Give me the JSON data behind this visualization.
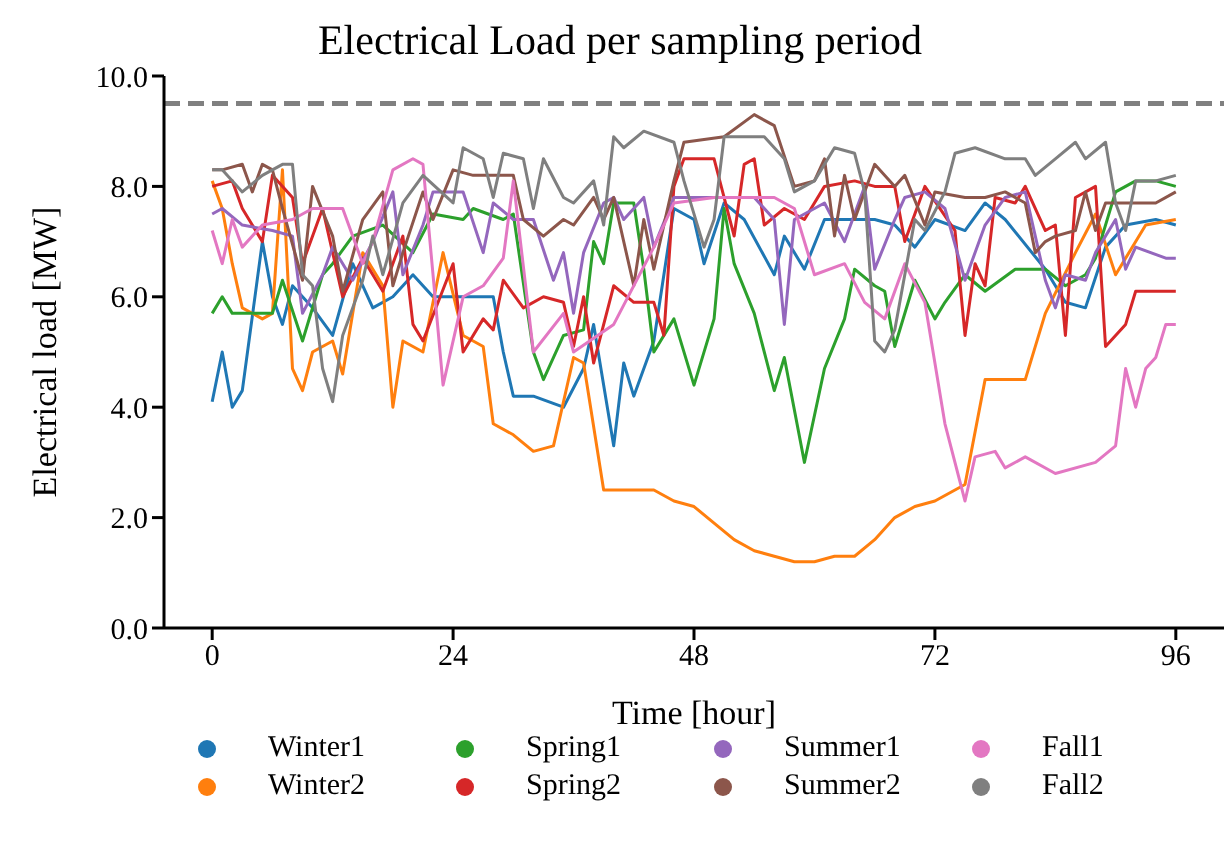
{
  "chart_data": {
    "type": "line",
    "title": "Electrical Load per sampling period",
    "xlabel": "Time [hour]",
    "ylabel": "Electrical load [MW]",
    "xlim": [
      -4.8,
      100.8
    ],
    "xticks": [
      0,
      24,
      48,
      72,
      96
    ],
    "ylim": [
      0,
      10
    ],
    "yticks": [
      {
        "value": 0,
        "label": "0.0"
      },
      {
        "value": 2,
        "label": "2.0"
      },
      {
        "value": 4,
        "label": "4.0"
      },
      {
        "value": 6,
        "label": "6.0"
      },
      {
        "value": 8,
        "label": "8.0"
      },
      {
        "value": 10,
        "label": "10.0"
      }
    ],
    "legend": "bottom",
    "marker": "none",
    "line_style": "solid",
    "ref_lines": [
      {
        "axis": "y",
        "value": 9.5,
        "color": "#808080",
        "line_style": "dashed"
      }
    ],
    "series": [
      {
        "name": "Winter1",
        "color": "#1f77b4",
        "x": [
          0,
          1,
          2,
          3,
          5,
          6,
          7,
          8,
          10,
          12,
          14,
          16,
          18,
          20,
          22,
          28,
          29,
          30,
          32,
          35,
          37,
          38,
          40,
          41,
          42,
          44,
          46,
          48,
          49,
          51,
          53,
          56,
          57,
          59,
          61,
          64,
          66,
          68,
          70,
          72,
          75,
          77,
          79,
          83,
          85,
          87,
          89,
          91,
          94,
          96
        ],
        "values": [
          4.1,
          5.0,
          4.0,
          4.3,
          7.0,
          6.0,
          5.5,
          6.2,
          5.8,
          5.3,
          6.6,
          5.8,
          6.0,
          6.4,
          6.0,
          6.0,
          5.0,
          4.2,
          4.2,
          4.0,
          4.7,
          5.5,
          3.3,
          4.8,
          4.2,
          5.2,
          7.6,
          7.4,
          6.6,
          7.7,
          7.4,
          6.4,
          7.1,
          6.5,
          7.4,
          7.4,
          7.4,
          7.3,
          6.9,
          7.4,
          7.2,
          7.7,
          7.4,
          6.5,
          5.9,
          5.8,
          6.9,
          7.3,
          7.4,
          7.3
        ]
      },
      {
        "name": "Winter2",
        "color": "#ff7f0e",
        "x": [
          0,
          1,
          2,
          3,
          5,
          6,
          7,
          8,
          9,
          10,
          12,
          13,
          15,
          17,
          18,
          19,
          21,
          23,
          25,
          27,
          28,
          30,
          32,
          34,
          36,
          37,
          39,
          41,
          44,
          46,
          48,
          50,
          52,
          54,
          56,
          58,
          60,
          62,
          64,
          66,
          68,
          70,
          72,
          75,
          77,
          81,
          83,
          86,
          88,
          90,
          93,
          96
        ],
        "values": [
          8.1,
          7.6,
          6.6,
          5.8,
          5.6,
          5.7,
          8.3,
          4.7,
          4.3,
          5.0,
          5.2,
          4.6,
          6.8,
          6.2,
          4.0,
          5.2,
          5.0,
          6.8,
          5.3,
          5.1,
          3.7,
          3.5,
          3.2,
          3.3,
          4.9,
          4.8,
          2.5,
          2.5,
          2.5,
          2.3,
          2.2,
          1.9,
          1.6,
          1.4,
          1.3,
          1.2,
          1.2,
          1.3,
          1.3,
          1.6,
          2.0,
          2.2,
          2.3,
          2.6,
          4.5,
          4.5,
          5.7,
          6.8,
          7.5,
          6.4,
          7.3,
          7.4
        ]
      },
      {
        "name": "Spring1",
        "color": "#2ca02c",
        "x": [
          0,
          1,
          2,
          6,
          7,
          9,
          11,
          12,
          14,
          17,
          20,
          22,
          25,
          26,
          29,
          30,
          32,
          33,
          35,
          37,
          38,
          39,
          40,
          42,
          43,
          44,
          46,
          48,
          50,
          51,
          52,
          54,
          56,
          57,
          59,
          61,
          63,
          64,
          66,
          67,
          68,
          70,
          72,
          73,
          75,
          77,
          80,
          83,
          85,
          87,
          88,
          90,
          92,
          94,
          96
        ],
        "values": [
          5.7,
          6.0,
          5.7,
          5.7,
          6.3,
          5.2,
          6.4,
          6.6,
          7.1,
          7.3,
          6.8,
          7.5,
          7.4,
          7.6,
          7.4,
          7.5,
          5.0,
          4.5,
          5.3,
          5.4,
          7.0,
          6.6,
          7.7,
          7.7,
          6.5,
          5.0,
          5.6,
          4.4,
          5.6,
          7.6,
          6.6,
          5.7,
          4.3,
          4.9,
          3.0,
          4.7,
          5.6,
          6.5,
          6.2,
          6.1,
          5.1,
          6.3,
          5.6,
          5.9,
          6.4,
          6.1,
          6.5,
          6.5,
          6.2,
          6.4,
          6.7,
          7.9,
          8.1,
          8.1,
          8.0
        ]
      },
      {
        "name": "Spring2",
        "color": "#d62728",
        "x": [
          0,
          2,
          3,
          5,
          6,
          8,
          9,
          11,
          13,
          15,
          17,
          19,
          20,
          21,
          24,
          25,
          27,
          28,
          29,
          31,
          33,
          35,
          36,
          37,
          38,
          40,
          42,
          44,
          45,
          46,
          47,
          50,
          52,
          53,
          54,
          55,
          57,
          59,
          61,
          64,
          66,
          68,
          69,
          70,
          71,
          74,
          75,
          76,
          77,
          78,
          80,
          81,
          83,
          84,
          85,
          86,
          88,
          89,
          91,
          92,
          94,
          96
        ],
        "values": [
          8.0,
          8.1,
          7.6,
          7.0,
          8.2,
          7.8,
          6.6,
          7.6,
          6.0,
          6.7,
          6.1,
          7.1,
          5.5,
          5.2,
          6.6,
          5.0,
          5.6,
          5.4,
          6.3,
          5.8,
          6.0,
          5.9,
          5.1,
          6.0,
          4.8,
          6.2,
          5.9,
          5.9,
          5.3,
          8.0,
          8.5,
          8.5,
          7.1,
          8.4,
          8.5,
          7.3,
          7.6,
          7.4,
          8.0,
          8.1,
          8.0,
          8.0,
          7.0,
          7.5,
          8.0,
          7.2,
          5.3,
          6.6,
          6.2,
          7.8,
          7.7,
          8.0,
          7.2,
          7.3,
          5.3,
          7.8,
          8.0,
          5.1,
          5.5,
          6.1,
          6.1,
          6.1
        ]
      },
      {
        "name": "Summer1",
        "color": "#9467bd",
        "x": [
          0,
          1,
          3,
          6,
          8,
          9,
          11,
          12,
          14,
          16,
          18,
          19,
          21,
          22,
          25,
          27,
          28,
          30,
          32,
          34,
          35,
          36,
          37,
          39,
          40,
          41,
          43,
          44,
          46,
          50,
          54,
          56,
          57,
          58,
          61,
          63,
          65,
          66,
          68,
          69,
          71,
          73,
          75,
          77,
          79,
          81,
          83,
          84,
          85,
          87,
          88,
          90,
          91,
          92,
          95,
          96
        ],
        "values": [
          7.5,
          7.6,
          7.3,
          7.2,
          7.1,
          5.7,
          6.4,
          6.9,
          6.3,
          7.0,
          7.9,
          6.4,
          7.3,
          7.9,
          7.9,
          6.8,
          7.7,
          7.4,
          7.4,
          6.3,
          6.8,
          5.7,
          6.8,
          7.7,
          7.8,
          7.4,
          7.8,
          6.9,
          7.8,
          7.8,
          7.8,
          7.4,
          5.5,
          7.4,
          7.7,
          7.0,
          8.0,
          6.5,
          7.4,
          7.8,
          7.9,
          7.6,
          6.3,
          7.3,
          7.8,
          7.9,
          6.3,
          5.8,
          6.4,
          6.3,
          6.8,
          7.4,
          6.5,
          6.9,
          6.7,
          6.7
        ]
      },
      {
        "name": "Summer2",
        "color": "#8c564b",
        "x": [
          0,
          1,
          3,
          4,
          5,
          6,
          7,
          9,
          10,
          12,
          13,
          15,
          17,
          18,
          19,
          21,
          22,
          24,
          26,
          28,
          30,
          31,
          33,
          35,
          36,
          38,
          39,
          40,
          42,
          43,
          44,
          46,
          47,
          51,
          54,
          56,
          58,
          60,
          61,
          62,
          63,
          64,
          66,
          68,
          69,
          71,
          72,
          75,
          77,
          79,
          81,
          82,
          83,
          84,
          86,
          87,
          88,
          89,
          92,
          94,
          96
        ],
        "values": [
          8.3,
          8.3,
          8.4,
          7.9,
          8.4,
          8.3,
          7.6,
          6.3,
          8.0,
          7.1,
          6.1,
          7.4,
          7.9,
          6.2,
          6.8,
          7.9,
          7.4,
          8.3,
          8.2,
          8.2,
          8.2,
          7.4,
          7.1,
          7.4,
          7.3,
          7.8,
          7.4,
          7.8,
          6.2,
          7.4,
          6.5,
          8.1,
          8.8,
          8.9,
          9.3,
          9.1,
          8.0,
          8.1,
          8.5,
          7.1,
          8.2,
          7.4,
          8.4,
          8.0,
          8.2,
          7.3,
          7.9,
          7.8,
          7.8,
          7.9,
          7.7,
          6.8,
          7.0,
          7.1,
          7.2,
          7.9,
          7.2,
          7.7,
          7.7,
          7.7,
          7.9
        ]
      },
      {
        "name": "Fall1",
        "color": "#e377c2",
        "x": [
          0,
          1,
          2,
          3,
          5,
          8,
          10,
          13,
          15,
          16,
          18,
          20,
          21,
          23,
          25,
          27,
          29,
          30,
          32,
          35,
          36,
          40,
          44,
          46,
          50,
          56,
          58,
          60,
          63,
          65,
          67,
          69,
          71,
          73,
          75,
          76,
          78,
          79,
          81,
          84,
          88,
          90,
          91,
          92,
          93,
          94,
          95,
          96
        ],
        "values": [
          7.2,
          6.6,
          7.4,
          6.9,
          7.3,
          7.4,
          7.6,
          7.6,
          6.6,
          7.0,
          8.3,
          8.5,
          8.4,
          4.4,
          6.0,
          6.2,
          6.7,
          8.1,
          5.0,
          5.7,
          5.0,
          5.5,
          6.9,
          7.7,
          7.8,
          7.8,
          7.6,
          6.4,
          6.6,
          5.9,
          5.6,
          6.6,
          5.9,
          3.7,
          2.3,
          3.1,
          3.2,
          2.9,
          3.1,
          2.8,
          3.0,
          3.3,
          4.7,
          4.0,
          4.7,
          4.9,
          5.5,
          5.5
        ]
      },
      {
        "name": "Fall2",
        "color": "#7f7f7f",
        "x": [
          0,
          1,
          3,
          5,
          7,
          8,
          9,
          10,
          11,
          12,
          13,
          15,
          16,
          17,
          19,
          21,
          24,
          25,
          27,
          28,
          29,
          31,
          32,
          33,
          35,
          36,
          38,
          39,
          40,
          41,
          43,
          46,
          47,
          49,
          50,
          51,
          55,
          57,
          58,
          60,
          62,
          64,
          65,
          66,
          67,
          68,
          70,
          71,
          73,
          74,
          76,
          79,
          81,
          82,
          84,
          86,
          87,
          89,
          90,
          91,
          92,
          94,
          96
        ],
        "values": [
          8.3,
          8.3,
          7.9,
          8.2,
          8.4,
          8.4,
          6.4,
          6.2,
          4.7,
          4.1,
          5.3,
          6.3,
          7.1,
          6.4,
          7.7,
          8.2,
          7.7,
          8.7,
          8.5,
          7.8,
          8.6,
          8.5,
          7.6,
          8.5,
          7.8,
          7.7,
          8.1,
          7.3,
          8.9,
          8.7,
          9.0,
          8.8,
          8.1,
          6.9,
          7.4,
          8.9,
          8.9,
          8.5,
          7.9,
          8.1,
          8.7,
          8.6,
          7.9,
          5.2,
          5.0,
          5.4,
          7.4,
          7.2,
          7.9,
          8.6,
          8.7,
          8.5,
          8.5,
          8.2,
          8.5,
          8.8,
          8.5,
          8.8,
          7.7,
          7.2,
          8.1,
          8.1,
          8.2
        ]
      }
    ]
  }
}
